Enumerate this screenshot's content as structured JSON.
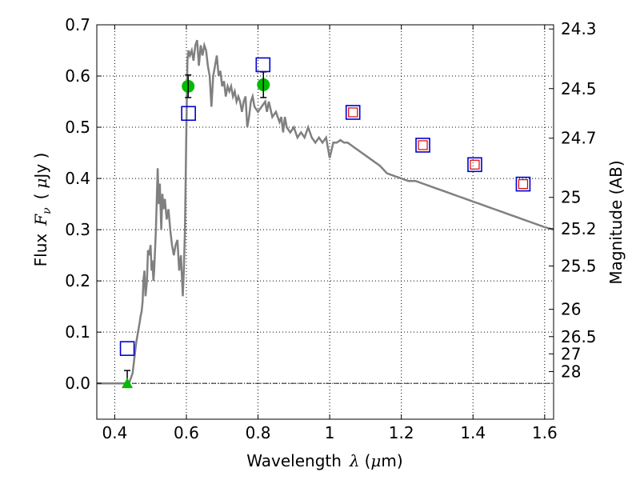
{
  "chart_data": {
    "type": "scatter",
    "xlabel": "Wavelength",
    "xlabel_symbol": "λ",
    "xlabel_unit_open": "(",
    "xlabel_unit_mu": "μ",
    "xlabel_unit_rest": "m)",
    "ylabel": "Flux",
    "ylabel_symbol": "F",
    "ylabel_sub": "ν",
    "ylabel_unit_open": "(",
    "ylabel_unit_mu": "μ",
    "ylabel_unit_rest": "Jy )",
    "y2label": "Magnitude (AB)",
    "xlim": [
      0.35,
      1.625
    ],
    "ylim": [
      -0.07,
      0.7
    ],
    "grid": true,
    "xticks": [
      0.4,
      0.6,
      0.8,
      1.0,
      1.2,
      1.4,
      1.6
    ],
    "xtick_labels": [
      "0.4",
      "0.6",
      "0.8",
      "1",
      "1.2",
      "1.4",
      "1.6"
    ],
    "yticks": [
      0.0,
      0.1,
      0.2,
      0.3,
      0.4,
      0.5,
      0.6,
      0.7
    ],
    "ytick_labels": [
      "0.0",
      "0.1",
      "0.2",
      "0.3",
      "0.4",
      "0.5",
      "0.6",
      "0.7"
    ],
    "y2ticks": [
      {
        "mag": 24.3,
        "label": "24.3"
      },
      {
        "mag": 24.5,
        "label": "24.5"
      },
      {
        "mag": 24.7,
        "label": "24.7"
      },
      {
        "mag": 25.0,
        "label": "25"
      },
      {
        "mag": 25.2,
        "label": "25.2"
      },
      {
        "mag": 25.5,
        "label": "25.5"
      },
      {
        "mag": 26.0,
        "label": "26"
      },
      {
        "mag": 26.5,
        "label": "26.5"
      },
      {
        "mag": 27.0,
        "label": "27"
      },
      {
        "mag": 28.0,
        "label": "28"
      }
    ],
    "series": [
      {
        "kind": "model-spectrum",
        "color": "#808080",
        "x": [
          0.35,
          0.43,
          0.44,
          0.45,
          0.455,
          0.46,
          0.465,
          0.47,
          0.472,
          0.475,
          0.478,
          0.48,
          0.483,
          0.486,
          0.49,
          0.493,
          0.496,
          0.5,
          0.503,
          0.505,
          0.508,
          0.51,
          0.515,
          0.52,
          0.523,
          0.526,
          0.53,
          0.533,
          0.536,
          0.54,
          0.545,
          0.55,
          0.555,
          0.56,
          0.565,
          0.57,
          0.575,
          0.58,
          0.585,
          0.59,
          0.593,
          0.596,
          0.6,
          0.603,
          0.606,
          0.61,
          0.615,
          0.62,
          0.625,
          0.63,
          0.635,
          0.64,
          0.645,
          0.65,
          0.655,
          0.66,
          0.665,
          0.67,
          0.675,
          0.68,
          0.685,
          0.69,
          0.695,
          0.7,
          0.705,
          0.71,
          0.715,
          0.72,
          0.725,
          0.73,
          0.735,
          0.74,
          0.745,
          0.75,
          0.755,
          0.76,
          0.765,
          0.77,
          0.775,
          0.78,
          0.785,
          0.79,
          0.8,
          0.81,
          0.82,
          0.825,
          0.83,
          0.84,
          0.85,
          0.86,
          0.865,
          0.87,
          0.875,
          0.88,
          0.89,
          0.9,
          0.91,
          0.92,
          0.93,
          0.94,
          0.95,
          0.96,
          0.97,
          0.98,
          0.99,
          1.0,
          1.01,
          1.02,
          1.03,
          1.04,
          1.05,
          1.06,
          1.07,
          1.08,
          1.09,
          1.1,
          1.12,
          1.14,
          1.16,
          1.18,
          1.2,
          1.22,
          1.24,
          1.26,
          1.28,
          1.3,
          1.32,
          1.34,
          1.36,
          1.38,
          1.4,
          1.42,
          1.44,
          1.46,
          1.48,
          1.5,
          1.52,
          1.54,
          1.56,
          1.58,
          1.6,
          1.625
        ],
        "y": [
          0.0,
          0.0,
          0.0,
          0.02,
          0.05,
          0.08,
          0.1,
          0.12,
          0.13,
          0.14,
          0.16,
          0.2,
          0.22,
          0.17,
          0.2,
          0.26,
          0.25,
          0.27,
          0.22,
          0.24,
          0.2,
          0.22,
          0.3,
          0.42,
          0.35,
          0.39,
          0.3,
          0.37,
          0.34,
          0.36,
          0.32,
          0.34,
          0.3,
          0.27,
          0.25,
          0.27,
          0.28,
          0.22,
          0.25,
          0.17,
          0.22,
          0.3,
          0.5,
          0.63,
          0.65,
          0.64,
          0.65,
          0.63,
          0.66,
          0.67,
          0.62,
          0.66,
          0.64,
          0.66,
          0.65,
          0.62,
          0.6,
          0.54,
          0.6,
          0.62,
          0.64,
          0.6,
          0.61,
          0.58,
          0.59,
          0.56,
          0.58,
          0.57,
          0.58,
          0.56,
          0.57,
          0.55,
          0.56,
          0.55,
          0.53,
          0.55,
          0.56,
          0.5,
          0.52,
          0.55,
          0.56,
          0.54,
          0.53,
          0.54,
          0.55,
          0.53,
          0.55,
          0.52,
          0.53,
          0.51,
          0.52,
          0.49,
          0.52,
          0.5,
          0.49,
          0.5,
          0.48,
          0.49,
          0.48,
          0.5,
          0.48,
          0.47,
          0.48,
          0.47,
          0.48,
          0.44,
          0.47,
          0.47,
          0.475,
          0.47,
          0.47,
          0.465,
          0.46,
          0.455,
          0.45,
          0.445,
          0.435,
          0.425,
          0.41,
          0.405,
          0.4,
          0.395,
          0.395,
          0.39,
          0.385,
          0.38,
          0.375,
          0.37,
          0.365,
          0.36,
          0.355,
          0.35,
          0.345,
          0.34,
          0.335,
          0.33,
          0.325,
          0.32,
          0.315,
          0.31,
          0.305,
          0.3
        ]
      },
      {
        "kind": "measured",
        "color": "#00bb00",
        "points": [
          {
            "x": 0.605,
            "y": 0.58,
            "err": 0.022
          },
          {
            "x": 0.815,
            "y": 0.583,
            "err": 0.025
          }
        ]
      },
      {
        "kind": "upper-limit",
        "color": "#00bb00",
        "points": [
          {
            "x": 0.435,
            "y": 0.0,
            "err_up": 0.025
          }
        ]
      },
      {
        "kind": "model-photometry",
        "color": "#0000cc",
        "points": [
          {
            "x": 0.435,
            "y": 0.068
          },
          {
            "x": 0.606,
            "y": 0.527
          },
          {
            "x": 0.814,
            "y": 0.622
          },
          {
            "x": 1.065,
            "y": 0.529
          },
          {
            "x": 1.26,
            "y": 0.465
          },
          {
            "x": 1.405,
            "y": 0.427
          },
          {
            "x": 1.54,
            "y": 0.389
          }
        ]
      },
      {
        "kind": "model-photometry-inner",
        "color": "#dd0000",
        "points": [
          {
            "x": 1.065,
            "y": 0.529
          },
          {
            "x": 1.26,
            "y": 0.465
          },
          {
            "x": 1.405,
            "y": 0.427
          },
          {
            "x": 1.54,
            "y": 0.389
          }
        ]
      }
    ]
  }
}
